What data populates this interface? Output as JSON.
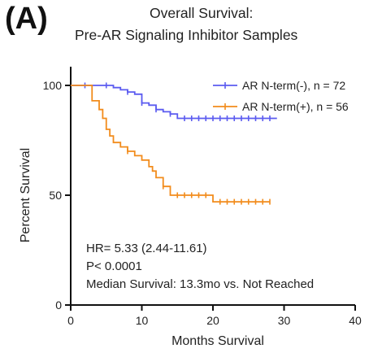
{
  "panel_label": "(A)",
  "chart_data": {
    "type": "line",
    "title": [
      "Overall Survival:",
      "Pre-AR Signaling Inhibitor Samples"
    ],
    "xlabel": "Months Survival",
    "ylabel": "Percent Survival",
    "xlim": [
      0,
      40
    ],
    "ylim": [
      0,
      100
    ],
    "xticks": [
      0,
      10,
      20,
      30,
      40
    ],
    "yticks": [
      0,
      50,
      100
    ],
    "legend_position": "top-right",
    "series": [
      {
        "name": "AR N-term(-), n = 72",
        "color": "#5b5bf0",
        "steps": [
          [
            0,
            100
          ],
          [
            4,
            100
          ],
          [
            6,
            99
          ],
          [
            7,
            98
          ],
          [
            8,
            97
          ],
          [
            9,
            96
          ],
          [
            10,
            92
          ],
          [
            11,
            91
          ],
          [
            12,
            89
          ],
          [
            13,
            88
          ],
          [
            14,
            87
          ],
          [
            15,
            85
          ],
          [
            29,
            85
          ]
        ],
        "censored_x": [
          2,
          5,
          8,
          10,
          12,
          14,
          16,
          17,
          18,
          19,
          20,
          21,
          22,
          23,
          24,
          25,
          26,
          27,
          28
        ]
      },
      {
        "name": "AR N-term(+), n = 56",
        "color": "#f28c1c",
        "steps": [
          [
            0,
            100
          ],
          [
            2,
            100
          ],
          [
            3,
            93
          ],
          [
            4,
            89
          ],
          [
            4.5,
            85
          ],
          [
            5,
            80
          ],
          [
            5.5,
            77
          ],
          [
            6,
            74
          ],
          [
            7,
            72
          ],
          [
            8,
            70
          ],
          [
            9,
            68
          ],
          [
            10,
            66
          ],
          [
            11,
            63
          ],
          [
            11.5,
            61
          ],
          [
            12,
            58
          ],
          [
            13,
            54
          ],
          [
            14,
            50
          ],
          [
            20,
            47
          ],
          [
            28,
            47
          ]
        ],
        "censored_x": [
          8,
          13,
          15,
          16,
          17,
          18,
          19,
          21,
          22,
          23,
          24,
          25,
          26,
          27,
          28
        ]
      }
    ],
    "annotations": [
      "HR= 5.33 (2.44-11.61)",
      "P< 0.0001",
      "Median Survival: 13.3mo vs. Not Reached"
    ]
  }
}
